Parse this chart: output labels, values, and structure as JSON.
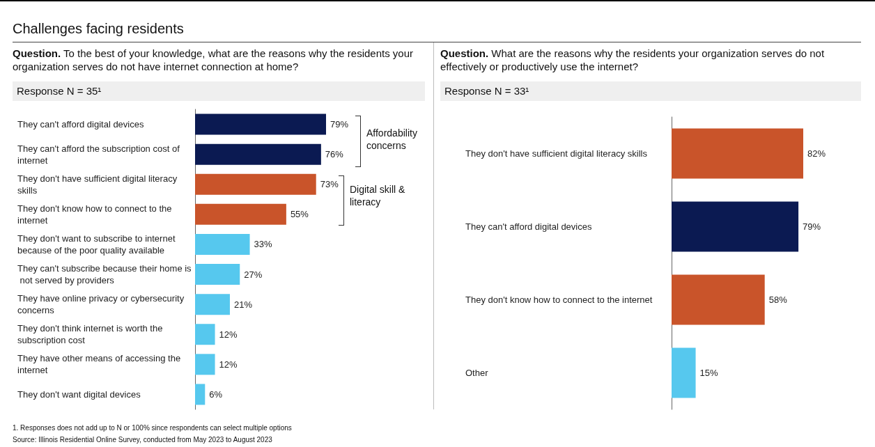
{
  "chart_data": [
    {
      "type": "bar",
      "orientation": "horizontal",
      "title": "Challenges facing residents",
      "subtitle": "Question. To the best of your knowledge, what are the reasons why the residents your organization serves do not have internet connection at home?",
      "categories": [
        "They can't afford digital devices",
        "They can't afford the subscription cost of internet",
        "They don't have sufficient digital literacy skills",
        "They don't know how to connect to the internet",
        "They don't want to subscribe to internet because of the poor quality available",
        "They can't subscribe because their home is not served by providers",
        "They have online privacy or cybersecurity concerns",
        "They don't think internet is worth the subscription cost",
        "They have other means of accessing the internet",
        "They don't want digital devices"
      ],
      "values": [
        79,
        76,
        73,
        55,
        33,
        27,
        21,
        12,
        12,
        6
      ],
      "colors": [
        "#0b1a52",
        "#0b1a52",
        "#c9542a",
        "#c9542a",
        "#56c8ee",
        "#56c8ee",
        "#56c8ee",
        "#56c8ee",
        "#56c8ee",
        "#56c8ee"
      ],
      "value_labels": [
        "79%",
        "76%",
        "73%",
        "55%",
        "33%",
        "27%",
        "21%",
        "12%",
        "12%",
        "6%"
      ],
      "annotations": [
        "Response N = 35¹",
        "Affordability concerns",
        "Digital skill & literacy",
        "1.   Responses does not add up to N or 100% since respondents can select multiple options",
        "Source: Illinois Residential Online Survey, conducted from May 2023 to August 2023"
      ]
    },
    {
      "type": "bar",
      "orientation": "horizontal",
      "subtitle": "Question. What are the reasons why the residents your organization serves do not effectively or productively use the internet?",
      "categories": [
        "They don't have sufficient digital literacy skills",
        "They can't afford digital devices",
        "They don't know how to connect to the internet",
        "Other"
      ],
      "values": [
        82,
        79,
        58,
        15
      ],
      "colors": [
        "#c9542a",
        "#0b1a52",
        "#c9542a",
        "#56c8ee"
      ],
      "value_labels": [
        "82%",
        "79%",
        "58%",
        "15%"
      ],
      "annotations": [
        "Response N = 33¹"
      ]
    }
  ]
}
